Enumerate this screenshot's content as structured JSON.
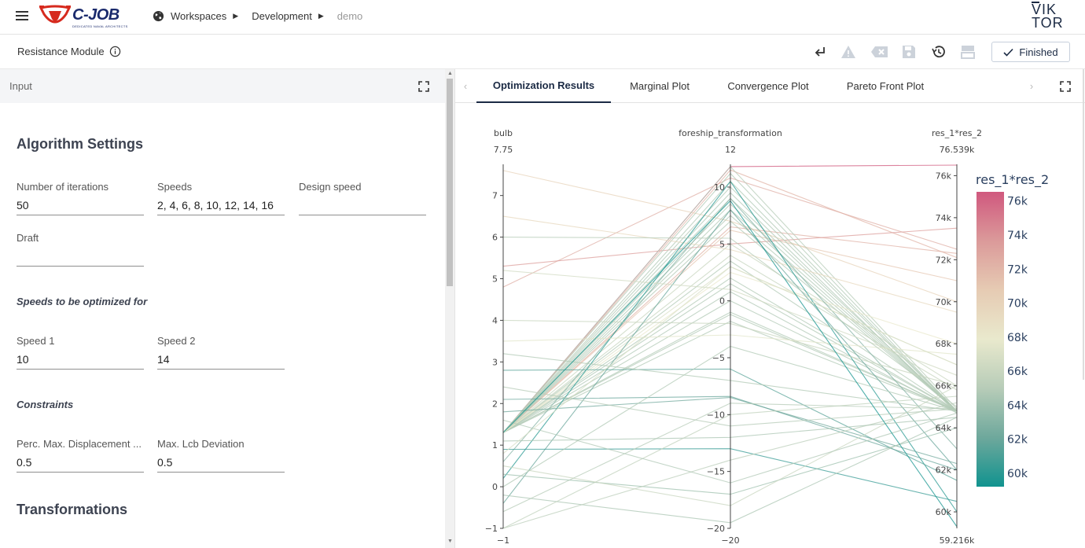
{
  "topbar": {
    "brand": "C-JOB",
    "brand_sub": "DEDICATED NAVAL ARCHITECTS",
    "breadcrumb": [
      "Workspaces",
      "Development",
      "demo"
    ],
    "viktor_logo": [
      "VIK",
      "TOR"
    ]
  },
  "subbar": {
    "module_title": "Resistance Module",
    "finished_label": "Finished",
    "icons": [
      "return-icon",
      "warning-icon",
      "clear-icon",
      "save-icon",
      "history-icon",
      "layout-icon"
    ]
  },
  "input_panel": {
    "header": "Input",
    "algorithm_title": "Algorithm Settings",
    "fields_row1": [
      {
        "label": "Number of iterations",
        "value": "50"
      },
      {
        "label": "Speeds",
        "value": "2, 4, 6, 8, 10, 12, 14, 16"
      },
      {
        "label": "Design speed",
        "value": ""
      }
    ],
    "draft": {
      "label": "Draft",
      "value": ""
    },
    "speeds_opt_title": "Speeds to be optimized for",
    "speed_fields": [
      {
        "label": "Speed 1",
        "value": "10"
      },
      {
        "label": "Speed 2",
        "value": "14"
      }
    ],
    "constraints_title": "Constraints",
    "constraint_fields": [
      {
        "label": "Perc. Max. Displacement ...",
        "value": "0.5"
      },
      {
        "label": "Max. Lcb Deviation",
        "value": "0.5"
      }
    ],
    "transformations_title": "Transformations"
  },
  "tabs": [
    {
      "label": "Optimization Results",
      "active": true
    },
    {
      "label": "Marginal Plot",
      "active": false
    },
    {
      "label": "Convergence Plot",
      "active": false
    },
    {
      "label": "Pareto Front Plot",
      "active": false
    }
  ],
  "chart_data": {
    "type": "parallel_coordinates",
    "dimensions": [
      {
        "label": "bulb",
        "range": [
          -1,
          7.75
        ],
        "top_label": "7.75",
        "bottom_label": "−1",
        "ticks": [
          {
            "v": -1,
            "t": "−1"
          },
          {
            "v": 0,
            "t": "0"
          },
          {
            "v": 1,
            "t": "1"
          },
          {
            "v": 2,
            "t": "2"
          },
          {
            "v": 3,
            "t": "3"
          },
          {
            "v": 4,
            "t": "4"
          },
          {
            "v": 5,
            "t": "5"
          },
          {
            "v": 6,
            "t": "6"
          },
          {
            "v": 7,
            "t": "7"
          }
        ]
      },
      {
        "label": "foreship_transformation",
        "range": [
          -20,
          12
        ],
        "top_label": "12",
        "bottom_label": "−20",
        "ticks": [
          {
            "v": -20,
            "t": "−20"
          },
          {
            "v": -15,
            "t": "−15"
          },
          {
            "v": -10,
            "t": "−10"
          },
          {
            "v": -5,
            "t": "−5"
          },
          {
            "v": 0,
            "t": "0"
          },
          {
            "v": 5,
            "t": "5"
          },
          {
            "v": 10,
            "t": "10"
          }
        ]
      },
      {
        "label": "res_1*res_2",
        "range": [
          59.216,
          76.539
        ],
        "top_label": "76.539k",
        "bottom_label": "59.216k",
        "ticks": [
          {
            "v": 60,
            "t": "60k"
          },
          {
            "v": 62,
            "t": "62k"
          },
          {
            "v": 64,
            "t": "64k"
          },
          {
            "v": 66,
            "t": "66k"
          },
          {
            "v": 68,
            "t": "68k"
          },
          {
            "v": 70,
            "t": "70k"
          },
          {
            "v": 72,
            "t": "72k"
          },
          {
            "v": 74,
            "t": "74k"
          },
          {
            "v": 76,
            "t": "76k"
          }
        ]
      }
    ],
    "colorbar": {
      "title": "res_1*res_2",
      "range": [
        59.216,
        76.539
      ],
      "ticks": [
        {
          "v": 60,
          "t": "60k"
        },
        {
          "v": 62,
          "t": "62k"
        },
        {
          "v": 64,
          "t": "64k"
        },
        {
          "v": 66,
          "t": "66k"
        },
        {
          "v": 68,
          "t": "68k"
        },
        {
          "v": 70,
          "t": "70k"
        },
        {
          "v": 72,
          "t": "72k"
        },
        {
          "v": 74,
          "t": "74k"
        },
        {
          "v": 76,
          "t": "76k"
        }
      ],
      "colors": [
        "#11938f",
        "#6ea89c",
        "#b7ccb8",
        "#e9e9cd",
        "#e6cbb3",
        "#db9a9a",
        "#d0587e"
      ]
    },
    "lines": [
      [
        1.3,
        11.8,
        76.5
      ],
      [
        1.3,
        6.5,
        72.3
      ],
      [
        1.3,
        11.5,
        72.1
      ],
      [
        4.8,
        10.8,
        72.5
      ],
      [
        5.3,
        5.0,
        73.5
      ],
      [
        1.3,
        6.2,
        71.0
      ],
      [
        7.6,
        7.0,
        70.0
      ],
      [
        1.3,
        10.0,
        64.8
      ],
      [
        1.3,
        9.5,
        64.7
      ],
      [
        1.3,
        11.8,
        64.9
      ],
      [
        1.3,
        11.2,
        64.8
      ],
      [
        1.3,
        10.5,
        64.8
      ],
      [
        1.3,
        9.0,
        64.8
      ],
      [
        1.3,
        8.5,
        64.8
      ],
      [
        1.3,
        8.0,
        64.8
      ],
      [
        1.3,
        7.5,
        64.8
      ],
      [
        1.3,
        7.0,
        64.8
      ],
      [
        1.3,
        1.5,
        64.8
      ],
      [
        1.3,
        0.8,
        64.7
      ],
      [
        1.3,
        -1.0,
        64.8
      ],
      [
        1.3,
        -1.8,
        64.8
      ],
      [
        1.3,
        0.0,
        64.8
      ],
      [
        1.3,
        -1.2,
        64.8
      ],
      [
        1.3,
        2.0,
        64.8
      ],
      [
        1.3,
        3.5,
        64.8
      ],
      [
        1.3,
        5.0,
        66.0
      ],
      [
        1.3,
        4.0,
        65.8
      ],
      [
        1.3,
        3.0,
        67.0
      ],
      [
        1.3,
        2.5,
        68.0
      ],
      [
        6.5,
        4.5,
        69.5
      ],
      [
        0.6,
        9.0,
        63.0
      ],
      [
        0.2,
        10.5,
        60.0
      ],
      [
        -0.4,
        8.0,
        62.0
      ],
      [
        2.8,
        -6.0,
        61.5
      ],
      [
        1.8,
        -8.5,
        62.3
      ],
      [
        2.1,
        -8.4,
        62.0
      ],
      [
        0.9,
        -13.0,
        60.5
      ],
      [
        0.3,
        -17.0,
        64.0
      ],
      [
        -0.2,
        -19.5,
        64.5
      ],
      [
        -1.0,
        -14.0,
        65.2
      ],
      [
        0.5,
        -18.0,
        66.0
      ],
      [
        -0.6,
        -9.0,
        64.9
      ],
      [
        1.1,
        -12.0,
        64.5
      ],
      [
        2.4,
        -11.0,
        64.9
      ],
      [
        3.2,
        -7.0,
        64.8
      ],
      [
        0.0,
        -4.0,
        64.8
      ],
      [
        -1.0,
        -10.0,
        65.5
      ],
      [
        1.6,
        -16.0,
        64.7
      ],
      [
        5.2,
        1.0,
        66.5
      ],
      [
        4.0,
        -2.0,
        66.0
      ],
      [
        3.5,
        -3.0,
        67.5
      ],
      [
        6.0,
        5.5,
        65.0
      ],
      [
        0.8,
        3.0,
        67.0
      ],
      [
        1.3,
        8.8,
        59.3
      ]
    ]
  }
}
